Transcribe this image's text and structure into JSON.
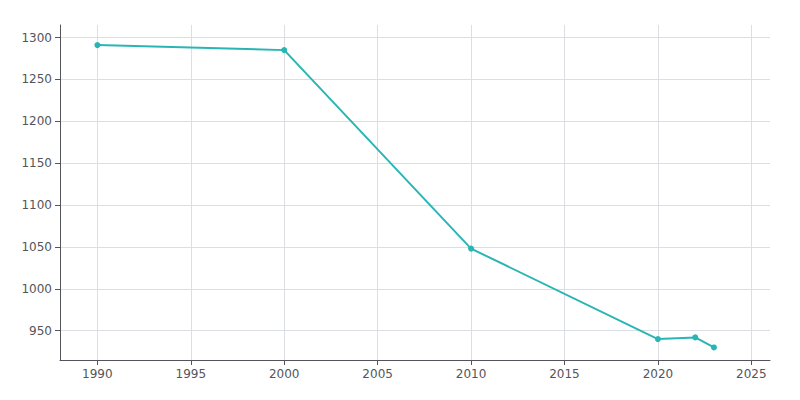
{
  "chart_data": {
    "type": "line",
    "x": [
      1990,
      2000,
      2010,
      2020,
      2022,
      2023
    ],
    "values": [
      1291,
      1285,
      1048,
      940,
      942,
      930
    ],
    "color": "#2ab5b5",
    "marker": "circle",
    "xlim": [
      1988,
      2026
    ],
    "ylim": [
      915,
      1315
    ],
    "xticks": [
      1990,
      1995,
      2000,
      2005,
      2010,
      2015,
      2020,
      2025
    ],
    "yticks": [
      950,
      1000,
      1050,
      1100,
      1150,
      1200,
      1250,
      1300
    ],
    "grid": true
  }
}
